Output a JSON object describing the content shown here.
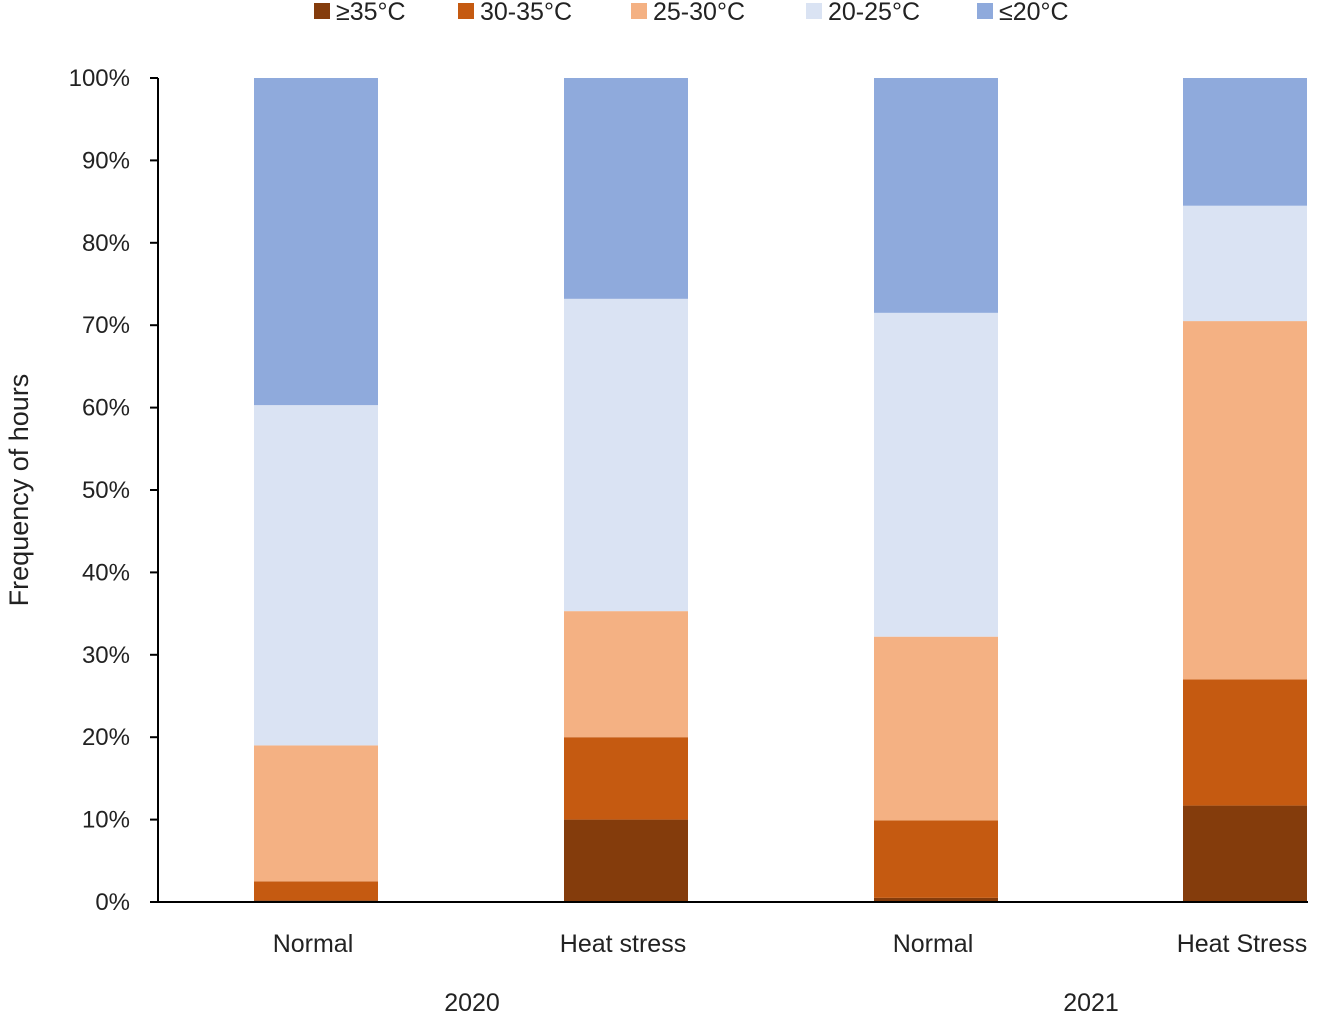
{
  "chart_data": {
    "type": "bar",
    "stacked": true,
    "percent": true,
    "title": "",
    "xlabel": "",
    "ylabel": "Frequency of hours",
    "ylim": [
      0,
      100
    ],
    "yticks": [
      "0%",
      "10%",
      "20%",
      "30%",
      "40%",
      "50%",
      "60%",
      "70%",
      "80%",
      "90%",
      "100%"
    ],
    "groups": [
      {
        "label": "2020",
        "categories": [
          "Normal",
          "Heat stress"
        ]
      },
      {
        "label": "2021",
        "categories": [
          "Normal",
          "Heat Stress"
        ]
      }
    ],
    "categories": [
      "Normal",
      "Heat stress",
      "Normal",
      "Heat Stress"
    ],
    "series": [
      {
        "name": "≥35°C",
        "color": "#843c0c",
        "values": [
          0.2,
          10.0,
          0.5,
          11.7
        ]
      },
      {
        "name": "30-35°C",
        "color": "#c55a11",
        "values": [
          2.3,
          10.0,
          9.4,
          15.3
        ]
      },
      {
        "name": "25-30°C",
        "color": "#f4b183",
        "values": [
          16.5,
          15.3,
          22.3,
          43.5
        ]
      },
      {
        "name": "20-25°C",
        "color": "#dae3f3",
        "values": [
          41.3,
          37.9,
          39.3,
          14.0
        ]
      },
      {
        "name": "≤20°C",
        "color": "#8faadc",
        "values": [
          39.7,
          26.8,
          28.5,
          15.5
        ]
      }
    ],
    "legend_position": "top",
    "grid": false
  }
}
